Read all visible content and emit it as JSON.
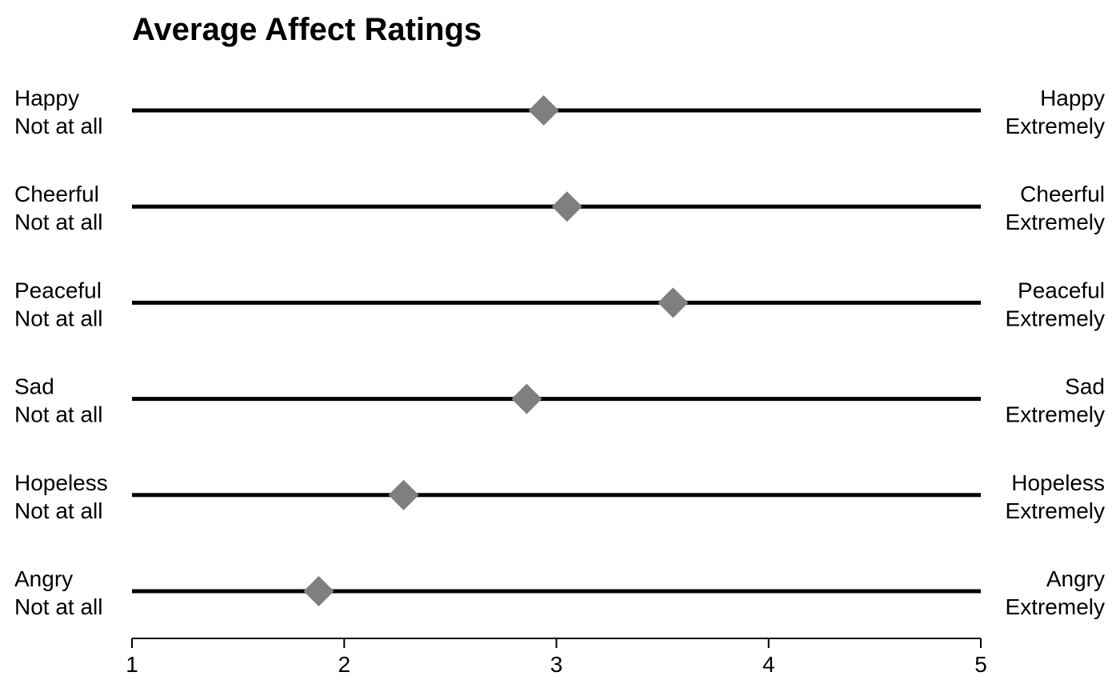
{
  "chart_data": {
    "type": "scatter",
    "title": "Average Affect Ratings",
    "xlim": [
      1,
      5
    ],
    "x_ticks": [
      1,
      2,
      3,
      4,
      5
    ],
    "low_anchor": "Not at all",
    "high_anchor": "Extremely",
    "marker": "diamond",
    "marker_color": "#7f7f7f",
    "line_color": "#000000",
    "grid": false,
    "items": [
      {
        "label": "Happy",
        "value": 2.94
      },
      {
        "label": "Cheerful",
        "value": 3.05
      },
      {
        "label": "Peaceful",
        "value": 3.55
      },
      {
        "label": "Sad",
        "value": 2.86
      },
      {
        "label": "Hopeless",
        "value": 2.28
      },
      {
        "label": "Angry",
        "value": 1.88
      }
    ]
  }
}
